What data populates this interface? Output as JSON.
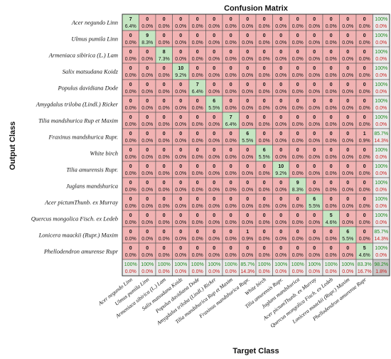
{
  "chart_data": {
    "type": "heatmap",
    "title": "Confusion Matrix",
    "xlabel": "Target Class",
    "ylabel": "Output Class",
    "classes": [
      "Acer negundo Linn",
      "Ulmus pumila Linn",
      "Armeniaca sibirica (L.) Lam",
      "Salix matsudana Koidz",
      "Populus davidiana Dode",
      "Amygdalus triloba (Lindl.) Ricker",
      "Tilia mandshurica Rup et Maxim",
      "Fraxinus mandshurica Rupr.",
      "White birch",
      "Tilia amurensis Rupr.",
      "Juglans mandshurica",
      "Acer pictumThunb. ex Murray",
      "Quercus mongolica Fisch. ex Ledeb",
      "Lonicera maackii (Rupr.) Maxim",
      "Phellodendron amurense Rupr"
    ],
    "matrix": [
      [
        7,
        0,
        0,
        0,
        0,
        0,
        0,
        0,
        0,
        0,
        0,
        0,
        0,
        0,
        0
      ],
      [
        0,
        9,
        0,
        0,
        0,
        0,
        0,
        0,
        0,
        0,
        0,
        0,
        0,
        0,
        0
      ],
      [
        0,
        0,
        8,
        0,
        0,
        0,
        0,
        0,
        0,
        0,
        0,
        0,
        0,
        0,
        0
      ],
      [
        0,
        0,
        0,
        10,
        0,
        0,
        0,
        0,
        0,
        0,
        0,
        0,
        0,
        0,
        0
      ],
      [
        0,
        0,
        0,
        0,
        7,
        0,
        0,
        0,
        0,
        0,
        0,
        0,
        0,
        0,
        0
      ],
      [
        0,
        0,
        0,
        0,
        0,
        6,
        0,
        0,
        0,
        0,
        0,
        0,
        0,
        0,
        0
      ],
      [
        0,
        0,
        0,
        0,
        0,
        0,
        7,
        0,
        0,
        0,
        0,
        0,
        0,
        0,
        0
      ],
      [
        0,
        0,
        0,
        0,
        0,
        0,
        0,
        6,
        0,
        0,
        0,
        0,
        0,
        0,
        1
      ],
      [
        0,
        0,
        0,
        0,
        0,
        0,
        0,
        0,
        6,
        0,
        0,
        0,
        0,
        0,
        0
      ],
      [
        0,
        0,
        0,
        0,
        0,
        0,
        0,
        0,
        0,
        10,
        0,
        0,
        0,
        0,
        0
      ],
      [
        0,
        0,
        0,
        0,
        0,
        0,
        0,
        0,
        0,
        0,
        9,
        0,
        0,
        0,
        0
      ],
      [
        0,
        0,
        0,
        0,
        0,
        0,
        0,
        0,
        0,
        0,
        0,
        6,
        0,
        0,
        0
      ],
      [
        0,
        0,
        0,
        0,
        0,
        0,
        0,
        0,
        0,
        0,
        0,
        0,
        5,
        0,
        0
      ],
      [
        0,
        0,
        0,
        0,
        0,
        0,
        0,
        1,
        0,
        0,
        0,
        0,
        0,
        6,
        0
      ],
      [
        0,
        0,
        0,
        0,
        0,
        0,
        0,
        0,
        0,
        0,
        0,
        0,
        0,
        0,
        5
      ]
    ],
    "cell_percent": [
      [
        "6.4%",
        "0.0%",
        "0.0%",
        "0.0%",
        "0.0%",
        "0.0%",
        "0.0%",
        "0.0%",
        "0.0%",
        "0.0%",
        "0.0%",
        "0.0%",
        "0.0%",
        "0.0%",
        "0.0%"
      ],
      [
        "0.0%",
        "8.3%",
        "0.0%",
        "0.0%",
        "0.0%",
        "0.0%",
        "0.0%",
        "0.0%",
        "0.0%",
        "0.0%",
        "0.0%",
        "0.0%",
        "0.0%",
        "0.0%",
        "0.0%"
      ],
      [
        "0.0%",
        "0.0%",
        "7.3%",
        "0.0%",
        "0.0%",
        "0.0%",
        "0.0%",
        "0.0%",
        "0.0%",
        "0.0%",
        "0.0%",
        "0.0%",
        "0.0%",
        "0.0%",
        "0.0%"
      ],
      [
        "0.0%",
        "0.0%",
        "0.0%",
        "9.2%",
        "0.0%",
        "0.0%",
        "0.0%",
        "0.0%",
        "0.0%",
        "0.0%",
        "0.0%",
        "0.0%",
        "0.0%",
        "0.0%",
        "0.0%"
      ],
      [
        "0.0%",
        "0.0%",
        "0.0%",
        "0.0%",
        "6.4%",
        "0.0%",
        "0.0%",
        "0.0%",
        "0.0%",
        "0.0%",
        "0.0%",
        "0.0%",
        "0.0%",
        "0.0%",
        "0.0%"
      ],
      [
        "0.0%",
        "0.0%",
        "0.0%",
        "0.0%",
        "0.0%",
        "5.5%",
        "0.0%",
        "0.0%",
        "0.0%",
        "0.0%",
        "0.0%",
        "0.0%",
        "0.0%",
        "0.0%",
        "0.0%"
      ],
      [
        "0.0%",
        "0.0%",
        "0.0%",
        "0.0%",
        "0.0%",
        "0.0%",
        "6.4%",
        "0.0%",
        "0.0%",
        "0.0%",
        "0.0%",
        "0.0%",
        "0.0%",
        "0.0%",
        "0.0%"
      ],
      [
        "0.0%",
        "0.0%",
        "0.0%",
        "0.0%",
        "0.0%",
        "0.0%",
        "0.0%",
        "5.5%",
        "0.0%",
        "0.0%",
        "0.0%",
        "0.0%",
        "0.0%",
        "0.0%",
        "0.9%"
      ],
      [
        "0.0%",
        "0.0%",
        "0.0%",
        "0.0%",
        "0.0%",
        "0.0%",
        "0.0%",
        "0.0%",
        "5.5%",
        "0.0%",
        "0.0%",
        "0.0%",
        "0.0%",
        "0.0%",
        "0.0%"
      ],
      [
        "0.0%",
        "0.0%",
        "0.0%",
        "0.0%",
        "0.0%",
        "0.0%",
        "0.0%",
        "0.0%",
        "0.0%",
        "9.2%",
        "0.0%",
        "0.0%",
        "0.0%",
        "0.0%",
        "0.0%"
      ],
      [
        "0.0%",
        "0.0%",
        "0.0%",
        "0.0%",
        "0.0%",
        "0.0%",
        "0.0%",
        "0.0%",
        "0.0%",
        "0.0%",
        "8.3%",
        "0.0%",
        "0.0%",
        "0.0%",
        "0.0%"
      ],
      [
        "0.0%",
        "0.0%",
        "0.0%",
        "0.0%",
        "0.0%",
        "0.0%",
        "0.0%",
        "0.0%",
        "0.0%",
        "0.0%",
        "0.0%",
        "5.5%",
        "0.0%",
        "0.0%",
        "0.0%"
      ],
      [
        "0.0%",
        "0.0%",
        "0.0%",
        "0.0%",
        "0.0%",
        "0.0%",
        "0.0%",
        "0.0%",
        "0.0%",
        "0.0%",
        "0.0%",
        "0.0%",
        "4.6%",
        "0.0%",
        "0.0%"
      ],
      [
        "0.0%",
        "0.0%",
        "0.0%",
        "0.0%",
        "0.0%",
        "0.0%",
        "0.0%",
        "0.9%",
        "0.0%",
        "0.0%",
        "0.0%",
        "0.0%",
        "0.0%",
        "5.5%",
        "0.0%"
      ],
      [
        "0.0%",
        "0.0%",
        "0.0%",
        "0.0%",
        "0.0%",
        "0.0%",
        "0.0%",
        "0.0%",
        "0.0%",
        "0.0%",
        "0.0%",
        "0.0%",
        "0.0%",
        "0.0%",
        "4.6%"
      ]
    ],
    "row_summary": [
      [
        "100%",
        "0.0%"
      ],
      [
        "100%",
        "0.0%"
      ],
      [
        "100%",
        "0.0%"
      ],
      [
        "100%",
        "0.0%"
      ],
      [
        "100%",
        "0.0%"
      ],
      [
        "100%",
        "0.0%"
      ],
      [
        "100%",
        "0.0%"
      ],
      [
        "85.7%",
        "14.3%"
      ],
      [
        "100%",
        "0.0%"
      ],
      [
        "100%",
        "0.0%"
      ],
      [
        "100%",
        "0.0%"
      ],
      [
        "100%",
        "0.0%"
      ],
      [
        "100%",
        "0.0%"
      ],
      [
        "85.7%",
        "14.3%"
      ],
      [
        "100%",
        "0.0%"
      ]
    ],
    "col_summary": [
      [
        "100%",
        "0.0%"
      ],
      [
        "100%",
        "0.0%"
      ],
      [
        "100%",
        "0.0%"
      ],
      [
        "100%",
        "0.0%"
      ],
      [
        "100%",
        "0.0%"
      ],
      [
        "100%",
        "0.0%"
      ],
      [
        "100%",
        "0.0%"
      ],
      [
        "85.7%",
        "14.3%"
      ],
      [
        "100%",
        "0.0%"
      ],
      [
        "100%",
        "0.0%"
      ],
      [
        "100%",
        "0.0%"
      ],
      [
        "100%",
        "0.0%"
      ],
      [
        "100%",
        "0.0%"
      ],
      [
        "100%",
        "0.0%"
      ],
      [
        "83.3%",
        "16.7%"
      ]
    ],
    "overall": [
      "98.2%",
      "1.8%"
    ],
    "colors": {
      "correct_cell": "#c5e6c2",
      "error_cell": "#f2b3b3",
      "summary_cell": "#eaeaea",
      "overall_cell": "#c9c9c9",
      "grid_line": "#555555",
      "green_text": "#1e8a1e",
      "red_text": "#c81e1e"
    }
  }
}
